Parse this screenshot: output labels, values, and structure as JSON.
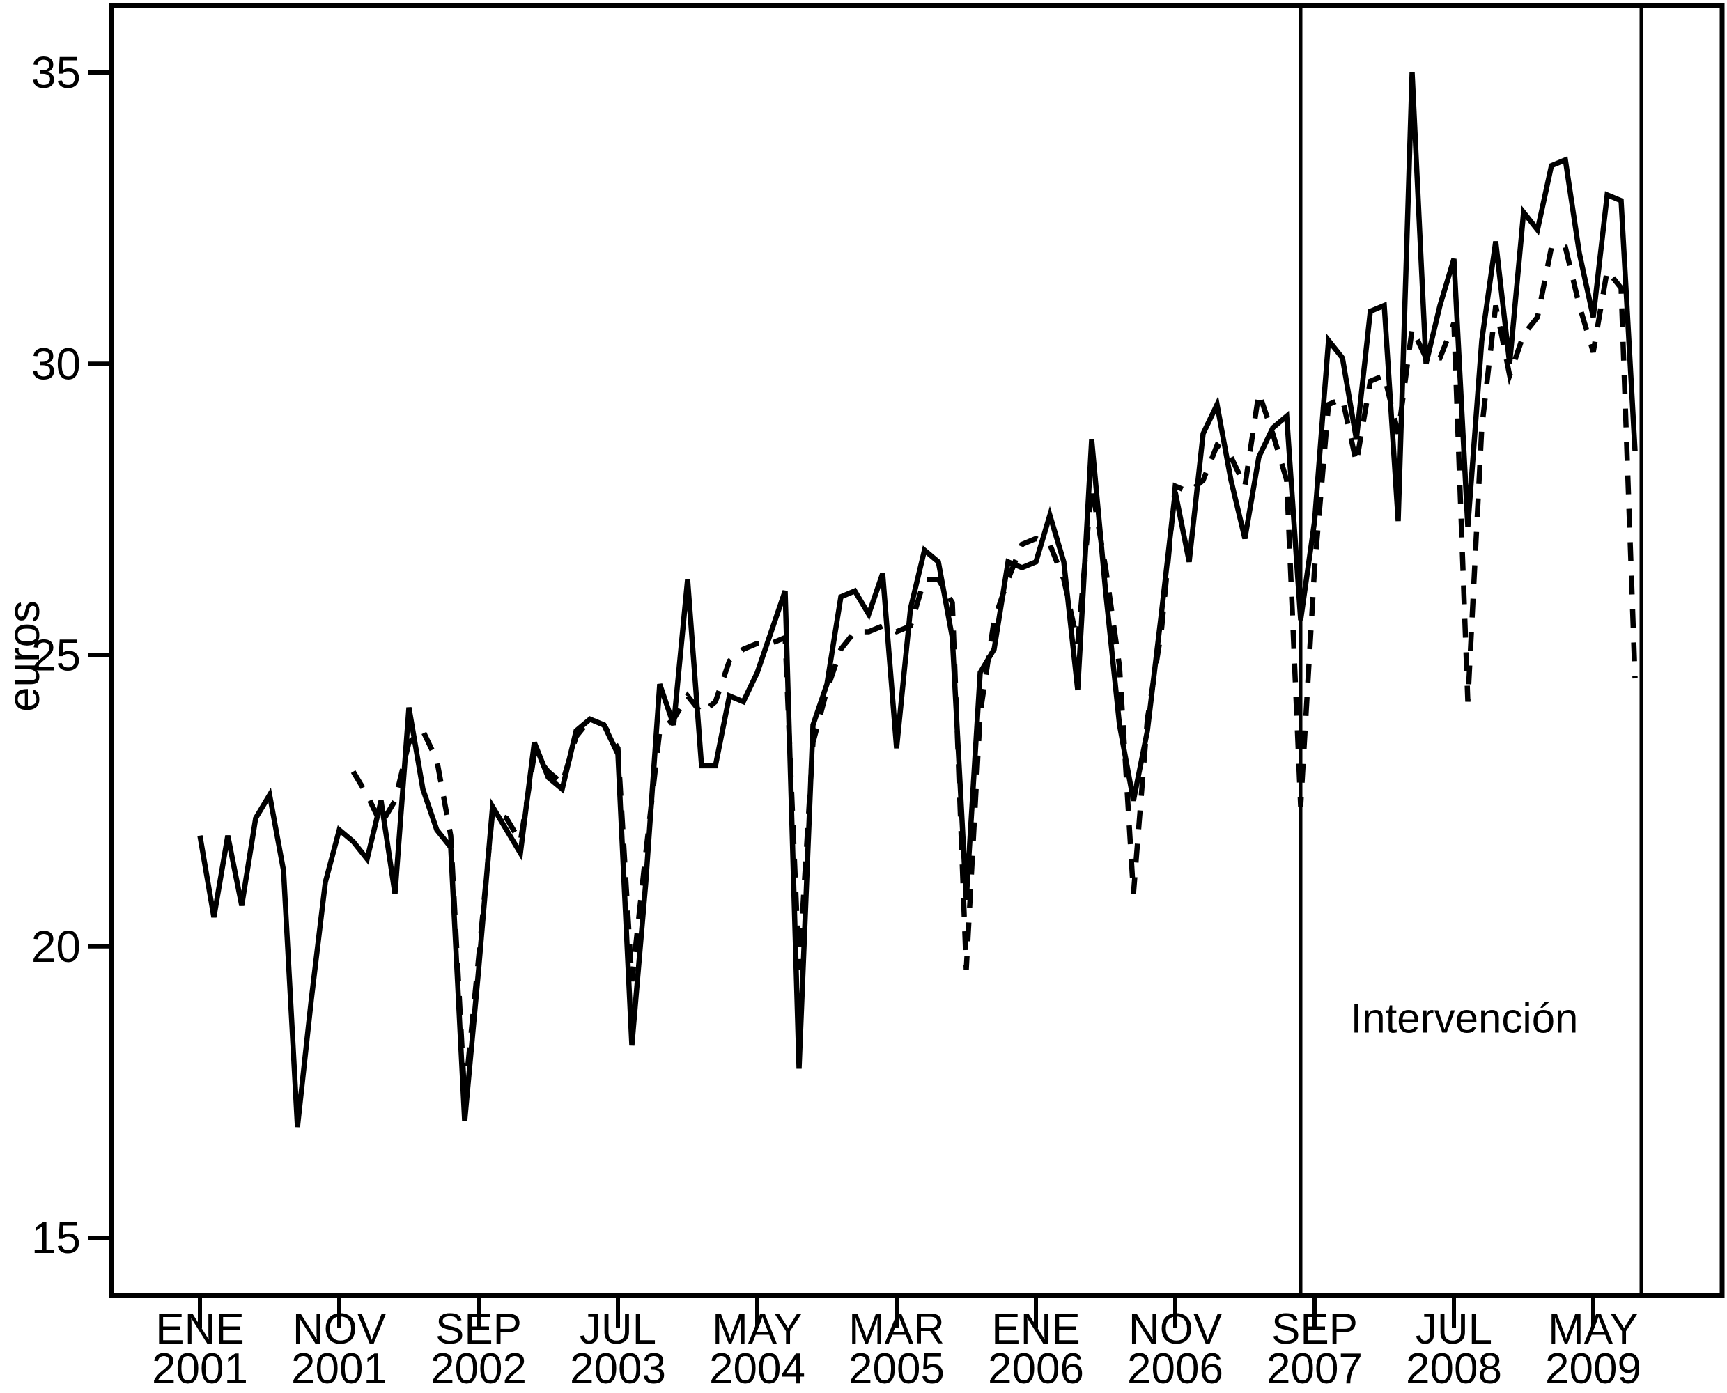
{
  "chart_data": {
    "type": "line",
    "title": "",
    "xlabel": "",
    "ylabel": "euros",
    "grid": false,
    "legend": "none",
    "background_color": "#ffffff",
    "line_color": "#000000",
    "ylim": [
      14.0,
      36.15
    ],
    "y_ticks": [
      15,
      20,
      25,
      30,
      35
    ],
    "x_unit": "month_index_from_2001_01",
    "x_ticks": [
      {
        "m": 0,
        "month": "ENE",
        "year": "2001"
      },
      {
        "m": 10,
        "month": "NOV",
        "year": "2001"
      },
      {
        "m": 20,
        "month": "SEP",
        "year": "2002"
      },
      {
        "m": 30,
        "month": "JUL",
        "year": "2003"
      },
      {
        "m": 40,
        "month": "MAY",
        "year": "2004"
      },
      {
        "m": 50,
        "month": "MAR",
        "year": "2005"
      },
      {
        "m": 60,
        "month": "ENE",
        "year": "2006"
      },
      {
        "m": 70,
        "month": "NOV",
        "year": "2006"
      },
      {
        "m": 80,
        "month": "SEP",
        "year": "2007"
      },
      {
        "m": 90,
        "month": "JUL",
        "year": "2008"
      },
      {
        "m": 100,
        "month": "MAY",
        "year": "2009"
      }
    ],
    "annotation": {
      "text": "Intervención"
    },
    "intervention_lines_months": [
      79,
      103.45
    ],
    "series": [
      {
        "name": "solid_line_series",
        "style": "solid",
        "start_month": 0,
        "values": [
          21.9,
          20.5,
          21.9,
          20.7,
          22.2,
          22.6,
          21.3,
          16.9,
          19.1,
          21.1,
          22.0,
          21.8,
          21.5,
          22.5,
          20.9,
          24.1,
          22.7,
          22.0,
          21.7,
          17.0,
          19.6,
          22.4,
          22.0,
          21.6,
          23.5,
          22.9,
          22.7,
          23.7,
          23.9,
          23.8,
          23.3,
          18.3,
          21.1,
          24.5,
          23.8,
          26.3,
          23.1,
          23.1,
          24.3,
          24.2,
          24.7,
          25.4,
          26.1,
          17.9,
          23.8,
          24.5,
          26.0,
          26.1,
          25.7,
          26.4,
          23.4,
          25.8,
          26.8,
          26.6,
          25.3,
          20.8,
          24.7,
          25.1,
          26.6,
          26.5,
          26.6,
          27.4,
          26.6,
          24.4,
          28.7,
          26.1,
          23.8,
          22.5,
          23.7,
          25.7,
          27.8,
          26.6,
          28.8,
          29.3,
          28.0,
          27.0,
          28.4,
          28.9,
          29.1,
          25.6,
          27.3,
          30.4,
          30.1,
          28.7,
          30.9,
          31.0,
          27.3,
          35.0,
          30.0,
          31.0,
          31.8,
          27.2,
          30.4,
          32.1,
          30.0,
          32.6,
          32.3,
          33.4,
          33.5,
          31.9,
          30.8,
          32.9,
          32.8,
          28.5
        ]
      },
      {
        "name": "dashed_line_series",
        "style": "dashed",
        "start_month": 11,
        "values": [
          23.0,
          22.6,
          22.1,
          22.5,
          23.5,
          23.7,
          23.2,
          21.9,
          17.4,
          19.8,
          22.3,
          22.2,
          21.8,
          23.3,
          23.0,
          22.8,
          23.6,
          23.9,
          23.8,
          23.4,
          19.4,
          21.6,
          23.7,
          23.9,
          24.3,
          24.0,
          24.2,
          24.9,
          25.1,
          25.2,
          25.2,
          25.3,
          19.6,
          23.5,
          24.4,
          25.1,
          25.4,
          25.4,
          25.5,
          25.4,
          25.5,
          26.3,
          26.3,
          25.9,
          19.6,
          24.0,
          25.6,
          26.3,
          26.9,
          27.0,
          26.9,
          26.3,
          25.2,
          27.9,
          26.5,
          24.8,
          20.9,
          23.9,
          25.4,
          27.9,
          27.8,
          28.0,
          28.6,
          28.4,
          27.9,
          29.5,
          28.8,
          28.0,
          22.4,
          26.5,
          29.3,
          29.4,
          28.3,
          29.7,
          29.8,
          28.8,
          30.6,
          30.1,
          30.1,
          30.7,
          24.2,
          28.9,
          31.0,
          29.8,
          30.5,
          30.8,
          32.0,
          32.0,
          31.0,
          30.2,
          31.6,
          31.3,
          24.6
        ]
      }
    ]
  }
}
